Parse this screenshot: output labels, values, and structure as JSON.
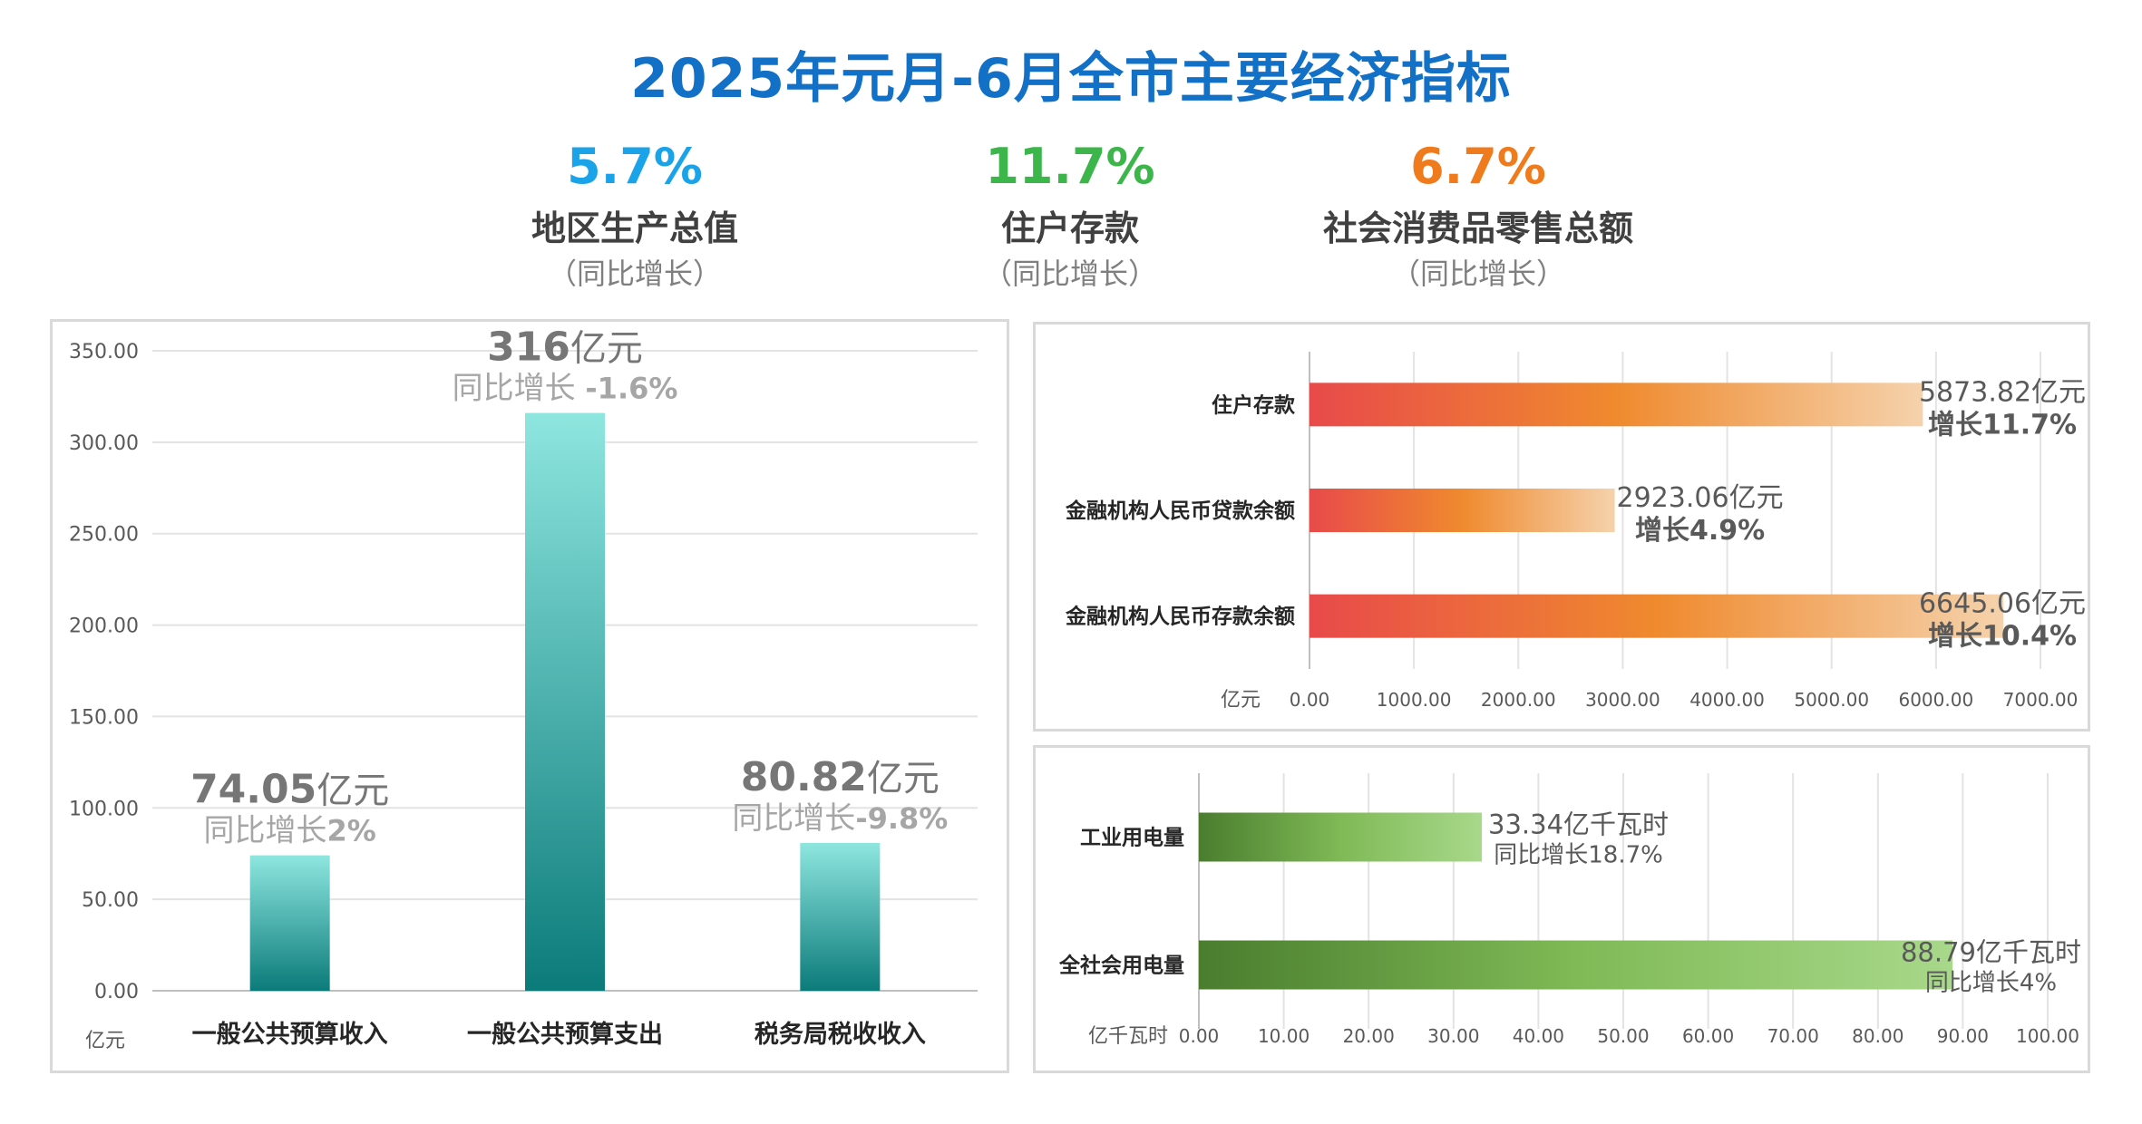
{
  "title": "2025年元月-6月全市主要经济指标",
  "kpis": [
    {
      "value": "5.7%",
      "name": "地区生产总值",
      "sub": "（同比增长）",
      "color": "#1aa3e8"
    },
    {
      "value": "11.7%",
      "name": "住户存款",
      "sub": "（同比增长）",
      "color": "#3cb54a"
    },
    {
      "value": "6.7%",
      "name": "社会消费品零售总额",
      "sub": "（同比增长）",
      "color": "#f07b1d"
    }
  ],
  "chart_data": [
    {
      "type": "bar",
      "unit_label": "亿元",
      "ylim": [
        0,
        350
      ],
      "yticks": [
        "0.00",
        "50.00",
        "100.00",
        "150.00",
        "200.00",
        "250.00",
        "300.00",
        "350.00"
      ],
      "categories": [
        "一般公共预算收入",
        "一般公共预算支出",
        "税务局税收收入"
      ],
      "values": [
        74.05,
        316,
        80.82
      ],
      "labels": [
        {
          "main_num": "74.05",
          "main_unit": "亿元",
          "sub_text": "同比增长",
          "sub_num": "2%"
        },
        {
          "main_num": "316",
          "main_unit": "亿元",
          "sub_text": "同比增长 ",
          "sub_num": "-1.6%"
        },
        {
          "main_num": "80.82",
          "main_unit": "亿元",
          "sub_text": "同比增长",
          "sub_num": "-9.8%"
        }
      ],
      "bar_colors": [
        "#8ee6df",
        "#0b7b7a"
      ],
      "grid": true
    },
    {
      "type": "bar-horizontal",
      "unit_label": "亿元",
      "xlim": [
        0,
        7000
      ],
      "xticks": [
        "0.00",
        "1000.00",
        "2000.00",
        "3000.00",
        "4000.00",
        "5000.00",
        "6000.00",
        "7000.00"
      ],
      "categories": [
        "住户存款",
        "金融机构人民币贷款余额",
        "金融机构人民币存款余额"
      ],
      "values": [
        5873.82,
        2923.06,
        6645.06
      ],
      "labels": [
        {
          "line1": "5873.82亿元",
          "line2": "增长11.7%"
        },
        {
          "line1": "2923.06亿元",
          "line2": "增长4.9%"
        },
        {
          "line1": "6645.06亿元",
          "line2": "增长10.4%"
        }
      ],
      "bar_colors": [
        "#e84a4a",
        "#ef8a2e",
        "#f5d2ac"
      ],
      "grid": true
    },
    {
      "type": "bar-horizontal",
      "unit_label": "亿千瓦时",
      "xlim": [
        0,
        100
      ],
      "xticks": [
        "0.00",
        "10.00",
        "20.00",
        "30.00",
        "40.00",
        "50.00",
        "60.00",
        "70.00",
        "80.00",
        "90.00",
        "100.00"
      ],
      "categories": [
        "工业用电量",
        "全社会用电量"
      ],
      "values": [
        33.34,
        88.79
      ],
      "labels": [
        {
          "line1": "33.34亿千瓦时",
          "line2": "同比增长18.7%"
        },
        {
          "line1": "88.79亿千瓦时",
          "line2": "同比增长4%"
        }
      ],
      "bar_colors": [
        "#4a7d2e",
        "#7fba56",
        "#a8d88a"
      ],
      "grid": true
    }
  ]
}
